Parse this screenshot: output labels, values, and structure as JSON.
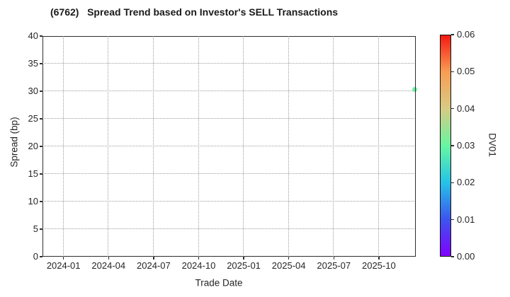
{
  "chart_data": {
    "type": "scatter",
    "title": "(6762)   Spread Trend based on Investor's SELL Transactions",
    "xlabel": "Trade Date",
    "ylabel": "Spread (bp)",
    "ylim": [
      0,
      40
    ],
    "y_ticks": [
      0,
      5,
      10,
      15,
      20,
      25,
      30,
      35,
      40
    ],
    "x_ticks": [
      {
        "label": "2024-01",
        "month": 0
      },
      {
        "label": "2024-04",
        "month": 3
      },
      {
        "label": "2024-07",
        "month": 6
      },
      {
        "label": "2024-10",
        "month": 9
      },
      {
        "label": "2025-01",
        "month": 12
      },
      {
        "label": "2025-04",
        "month": 15
      },
      {
        "label": "2025-07",
        "month": 18
      },
      {
        "label": "2025-10",
        "month": 21
      }
    ],
    "x_domain_months": [
      -1.4,
      23.46
    ],
    "grid": "dotted",
    "legend": "none",
    "points": [
      {
        "date": "2025-12",
        "month": 23.4,
        "spread_bp": 30.3,
        "dv01": 0.03,
        "color": "#6df2a4"
      }
    ],
    "colorbar": {
      "label": "DV01",
      "min": 0.0,
      "max": 0.06,
      "ticks": [
        "0.00",
        "0.01",
        "0.02",
        "0.03",
        "0.04",
        "0.05",
        "0.06"
      ],
      "colormap": "rainbow",
      "gradient_stops_bottom_to_top": [
        "#8000ff",
        "#3d55ee",
        "#26c3e8",
        "#67f6a1",
        "#d7cb84",
        "#f89e53",
        "#f51911"
      ]
    },
    "colors": {
      "spine": "#2e2e2e",
      "grid": "#9e9e9e",
      "text": "#262626",
      "title": "#1a1a1a",
      "background": "#ffffff"
    }
  }
}
